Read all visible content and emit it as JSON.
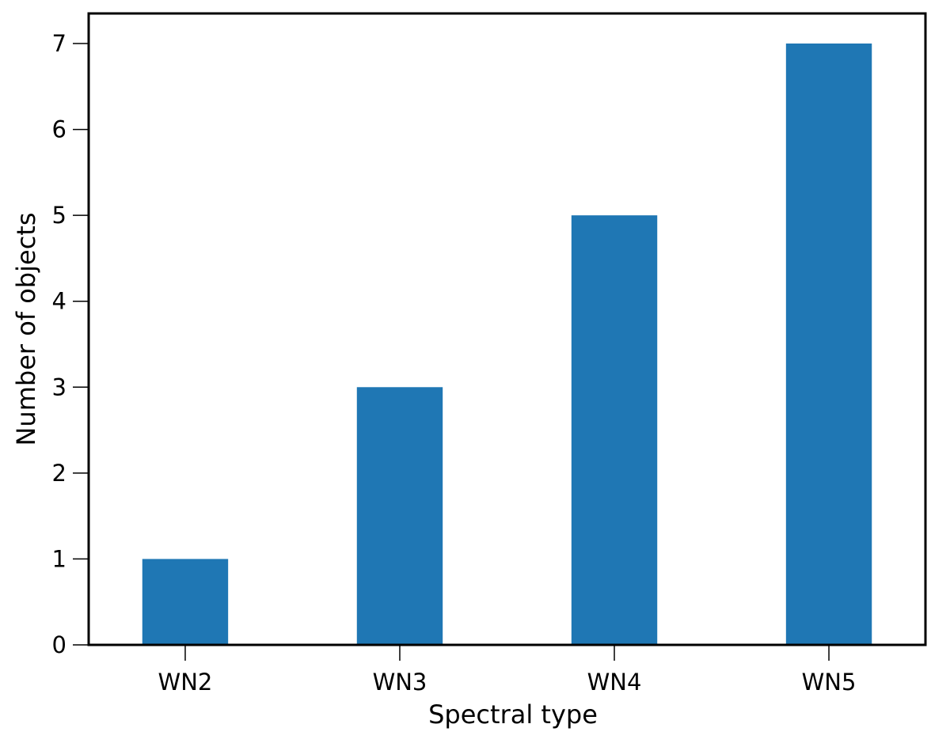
{
  "chart_data": {
    "type": "bar",
    "title": "",
    "xlabel": "Spectral type",
    "ylabel": "Number of objects",
    "categories": [
      "WN2",
      "WN3",
      "WN4",
      "WN5"
    ],
    "values": [
      1,
      3,
      5,
      7
    ],
    "ylim": [
      0,
      7.35
    ],
    "yticks": [
      0,
      1,
      2,
      3,
      4,
      5,
      6,
      7
    ],
    "grid": false,
    "legend": "none",
    "bar_color": "#1f77b4"
  }
}
